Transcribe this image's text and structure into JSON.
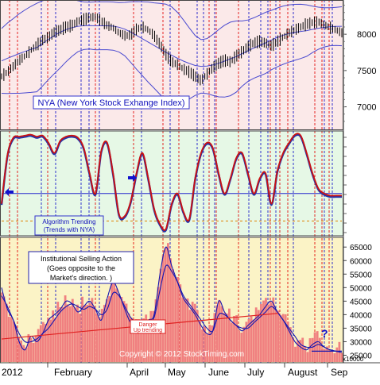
{
  "chart_data": [
    {
      "type": "line",
      "subtype": "ohlc-with-bollinger-bands",
      "panel": "top",
      "annotation": "NYA (New York Stock Exhange Index)",
      "ylim": [
        6700,
        8450
      ],
      "yticks": [
        8000,
        7500,
        7000
      ],
      "yticklabels": [
        "8000",
        "7500",
        "7000"
      ],
      "background": "#fbe9e9",
      "series": [
        {
          "price_path": [
            7420,
            7480,
            7560,
            7640,
            7700,
            7780,
            7850,
            7920,
            7960,
            8030,
            8060,
            8100,
            8120,
            8180,
            8200,
            8230,
            8240,
            8180,
            8120,
            8090,
            8020,
            7980,
            7990,
            8070,
            8100,
            8060,
            7980,
            7860,
            7720,
            7620,
            7580,
            7520,
            7480,
            7420,
            7360,
            7450,
            7540,
            7600,
            7640,
            7620,
            7700,
            7760,
            7830,
            7880,
            7900,
            7880,
            7840,
            7900,
            7960,
            8020,
            8060,
            8100,
            8140,
            8160,
            8170,
            8130,
            8090,
            8060,
            8020
          ]
        }
      ]
    },
    {
      "type": "line",
      "panel": "middle",
      "legend": [
        "Algorithm Trending",
        "(Trends with NYA)"
      ],
      "background": "#e6f8e6",
      "ylim": [
        0,
        100
      ],
      "series": [
        {
          "values": [
            30,
            78,
            95,
            96,
            97,
            98,
            96,
            97,
            90,
            80,
            92,
            96,
            97,
            95,
            85,
            60,
            40,
            82,
            90,
            60,
            20,
            18,
            32,
            60,
            80,
            55,
            25,
            10,
            5,
            30,
            40,
            22,
            15,
            55,
            80,
            90,
            85,
            60,
            40,
            55,
            75,
            80,
            60,
            40,
            55,
            60,
            30,
            62,
            80,
            90,
            98,
            97,
            80,
            60,
            45,
            40,
            38,
            38,
            38
          ]
        }
      ],
      "h_lines": [
        {
          "value": 40,
          "color": "#2222cc"
        },
        {
          "value": 13,
          "color": "#e08000",
          "style": "dashed"
        }
      ]
    },
    {
      "type": "bar",
      "panel": "bottom",
      "annotation": [
        "Institutional Selling Action",
        "(Goes opposite to the",
        "Market's direction. )"
      ],
      "danger_label": [
        "Danger",
        "Up trending"
      ],
      "background": "#fbf3c6",
      "ylim": [
        22500,
        68000
      ],
      "yticks": [
        65000,
        60000,
        55000,
        50000,
        45000,
        40000,
        35000,
        30000,
        25000
      ],
      "yticklabels": [
        "65000",
        "60000",
        "55000",
        "50000",
        "45000",
        "40000",
        "35000",
        "30000",
        "25000"
      ],
      "unit_label": "x10000",
      "question_mark": "?",
      "series": [
        {
          "name": "selling-volume",
          "values": [
            50000,
            42000,
            38000,
            30000,
            27000,
            32000,
            30000,
            33000,
            38000,
            40000,
            42000,
            45000,
            44000,
            41000,
            43000,
            45000,
            42000,
            38000,
            46000,
            52000,
            48000,
            42000,
            37000,
            36000,
            35000,
            38000,
            40000,
            55000,
            65000,
            58000,
            52000,
            46000,
            43000,
            40000,
            36000,
            33000,
            34000,
            45000,
            41000,
            38000,
            36000,
            34000,
            36000,
            38000,
            40000,
            43000,
            45000,
            41000,
            38000,
            34000,
            30000,
            28000,
            27000,
            29000,
            30000,
            28000,
            27000,
            26500,
            26000
          ]
        },
        {
          "name": "moving-average",
          "values": [
            47000,
            43000,
            38000,
            33000,
            30000,
            30000,
            31000,
            33000,
            35000,
            38000,
            41000,
            43000,
            44000,
            43000,
            42000,
            43000,
            42000,
            40000,
            42000,
            48000,
            47000,
            43000,
            39000,
            37000,
            36000,
            37000,
            39000,
            49000,
            58000,
            56000,
            52000,
            47000,
            44000,
            41000,
            38000,
            35000,
            34000,
            40000,
            40000,
            38000,
            36000,
            35000,
            35000,
            37000,
            39000,
            41000,
            43000,
            41000,
            38000,
            35000,
            32000,
            29000,
            28000,
            28000,
            29000,
            28000,
            27000,
            26500,
            26500
          ]
        }
      ],
      "trendline": {
        "from": 31000,
        "to": 40500
      }
    }
  ],
  "x_axis": {
    "labels": [
      "2012",
      "February",
      "April",
      "May",
      "June",
      "July",
      "August",
      "Sep"
    ]
  },
  "copyright": "Copyright © 2012 StockTiming.com",
  "colors": {
    "price": "#000000",
    "bands": "#4a4ad0",
    "algo": "#cc1111",
    "algo_shadow": "#2233aa",
    "vertical_red": "#e00000",
    "vertical_blue": "#1010c8",
    "volume_fill": "#f08080",
    "volume_ma": "#1515b0",
    "trendline": "#e02020"
  }
}
